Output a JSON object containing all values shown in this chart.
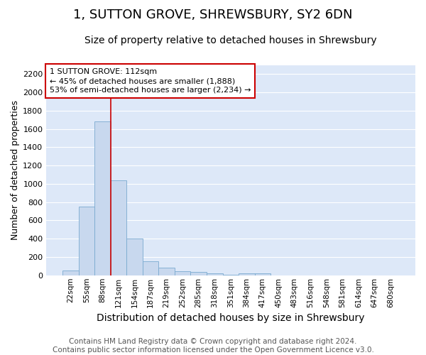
{
  "title": "1, SUTTON GROVE, SHREWSBURY, SY2 6DN",
  "subtitle": "Size of property relative to detached houses in Shrewsbury",
  "xlabel": "Distribution of detached houses by size in Shrewsbury",
  "ylabel": "Number of detached properties",
  "footer_line1": "Contains HM Land Registry data © Crown copyright and database right 2024.",
  "footer_line2": "Contains public sector information licensed under the Open Government Licence v3.0.",
  "bin_labels": [
    "22sqm",
    "55sqm",
    "88sqm",
    "121sqm",
    "154sqm",
    "187sqm",
    "219sqm",
    "252sqm",
    "285sqm",
    "318sqm",
    "351sqm",
    "384sqm",
    "417sqm",
    "450sqm",
    "483sqm",
    "516sqm",
    "548sqm",
    "581sqm",
    "614sqm",
    "647sqm",
    "680sqm"
  ],
  "bin_values": [
    50,
    750,
    1680,
    1040,
    405,
    150,
    80,
    45,
    35,
    25,
    5,
    25,
    22,
    0,
    0,
    0,
    0,
    0,
    0,
    0,
    0
  ],
  "bar_color": "#c8d8ee",
  "bar_edgecolor": "#7aaad0",
  "background_color": "#dde8f8",
  "grid_color": "#ffffff",
  "vline_x_idx": 3,
  "vline_color": "#cc0000",
  "annotation_line1": "1 SUTTON GROVE: 112sqm",
  "annotation_line2": "← 45% of detached houses are smaller (1,888)",
  "annotation_line3": "53% of semi-detached houses are larger (2,234) →",
  "annotation_box_facecolor": "#ffffff",
  "annotation_box_edgecolor": "#cc0000",
  "ylim": [
    0,
    2300
  ],
  "yticks": [
    0,
    200,
    400,
    600,
    800,
    1000,
    1200,
    1400,
    1600,
    1800,
    2000,
    2200
  ],
  "fig_bg": "#ffffff",
  "title_fontsize": 13,
  "subtitle_fontsize": 10,
  "ylabel_fontsize": 9,
  "xlabel_fontsize": 10,
  "tick_fontsize": 8,
  "footer_fontsize": 7.5
}
